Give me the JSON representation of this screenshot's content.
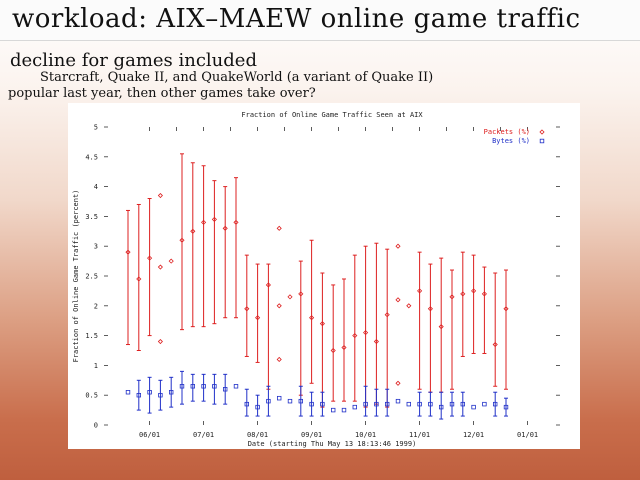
{
  "slide": {
    "title": "workload: AIX–MAEW online game traffic",
    "heading": "decline for games included",
    "line1": "Starcraft, Quake II, and QuakeWorld (a variant of Quake II)",
    "line2": "popular last year, then other games take over?"
  },
  "chart_data": {
    "type": "scatter",
    "title": "Fraction of Online Game Traffic Seen at AIX",
    "xlabel": "Date (starting Thu May 13 18:13:46 1999)",
    "ylabel": "Fraction of Online Game Traffic (percent)",
    "ylim": [
      0,
      5
    ],
    "yticks": [
      0,
      0.5,
      1,
      1.5,
      2,
      2.5,
      3,
      3.5,
      4,
      4.5,
      5
    ],
    "xlim": [
      0,
      40
    ],
    "xticks": [
      {
        "label": "06/01",
        "x": 2
      },
      {
        "label": "07/01",
        "x": 7
      },
      {
        "label": "08/01",
        "x": 12
      },
      {
        "label": "09/01",
        "x": 17
      },
      {
        "label": "10/01",
        "x": 22
      },
      {
        "label": "11/01",
        "x": 27
      },
      {
        "label": "12/01",
        "x": 32
      },
      {
        "label": "01/01",
        "x": 37
      }
    ],
    "grid": false,
    "legend_position": "top-right",
    "series": [
      {
        "name": "Packets (%)",
        "color": "#dd2020",
        "marker": "diamond",
        "points": [
          {
            "x": 0,
            "y": 2.9,
            "lo": 1.35,
            "hi": 3.6
          },
          {
            "x": 1,
            "y": 2.45,
            "lo": 1.25,
            "hi": 3.7
          },
          {
            "x": 2,
            "y": 2.8,
            "lo": 1.5,
            "hi": 3.8
          },
          {
            "x": 3,
            "y": 2.65
          },
          {
            "x": 3,
            "y": 3.85
          },
          {
            "x": 3,
            "y": 1.4
          },
          {
            "x": 4,
            "y": 2.75
          },
          {
            "x": 5,
            "y": 3.1,
            "lo": 1.6,
            "hi": 4.55
          },
          {
            "x": 6,
            "y": 3.25,
            "lo": 1.65,
            "hi": 4.4
          },
          {
            "x": 7,
            "y": 3.4,
            "lo": 1.65,
            "hi": 4.35
          },
          {
            "x": 8,
            "y": 3.45,
            "lo": 1.7,
            "hi": 4.1
          },
          {
            "x": 9,
            "y": 3.3,
            "lo": 1.8,
            "hi": 4.0
          },
          {
            "x": 10,
            "y": 3.4,
            "lo": 1.8,
            "hi": 4.15
          },
          {
            "x": 11,
            "y": 1.95,
            "lo": 1.15,
            "hi": 2.85
          },
          {
            "x": 12,
            "y": 1.8,
            "lo": 1.05,
            "hi": 2.7
          },
          {
            "x": 13,
            "y": 2.35,
            "lo": 0.6,
            "hi": 2.7
          },
          {
            "x": 14,
            "y": 3.3
          },
          {
            "x": 14,
            "y": 2.0
          },
          {
            "x": 14,
            "y": 1.1
          },
          {
            "x": 15,
            "y": 2.15
          },
          {
            "x": 16,
            "y": 2.2,
            "lo": 0.5,
            "hi": 2.75
          },
          {
            "x": 17,
            "y": 1.8,
            "lo": 0.7,
            "hi": 3.1
          },
          {
            "x": 18,
            "y": 1.7,
            "lo": 0.3,
            "hi": 2.55
          },
          {
            "x": 19,
            "y": 1.25,
            "lo": 0.4,
            "hi": 2.35
          },
          {
            "x": 20,
            "y": 1.3,
            "lo": 0.4,
            "hi": 2.45
          },
          {
            "x": 21,
            "y": 1.5,
            "lo": 0.4,
            "hi": 2.85
          },
          {
            "x": 22,
            "y": 1.55,
            "lo": 0.3,
            "hi": 3.0
          },
          {
            "x": 23,
            "y": 1.4,
            "lo": 0.35,
            "hi": 3.05
          },
          {
            "x": 24,
            "y": 1.85,
            "lo": 0.3,
            "hi": 2.95
          },
          {
            "x": 25,
            "y": 3.0
          },
          {
            "x": 25,
            "y": 2.1
          },
          {
            "x": 25,
            "y": 0.7
          },
          {
            "x": 26,
            "y": 2.0
          },
          {
            "x": 27,
            "y": 2.25,
            "lo": 0.6,
            "hi": 2.9
          },
          {
            "x": 28,
            "y": 1.95,
            "lo": 0.55,
            "hi": 2.7
          },
          {
            "x": 29,
            "y": 1.65,
            "lo": 0.55,
            "hi": 2.8
          },
          {
            "x": 30,
            "y": 2.15,
            "lo": 0.6,
            "hi": 2.6
          },
          {
            "x": 31,
            "y": 2.2,
            "lo": 1.15,
            "hi": 2.9
          },
          {
            "x": 32,
            "y": 2.25,
            "lo": 1.2,
            "hi": 2.85
          },
          {
            "x": 33,
            "y": 2.2,
            "lo": 1.2,
            "hi": 2.65
          },
          {
            "x": 34,
            "y": 1.35,
            "lo": 0.65,
            "hi": 2.55
          },
          {
            "x": 35,
            "y": 1.95,
            "lo": 0.6,
            "hi": 2.6
          }
        ]
      },
      {
        "name": "Bytes (%)",
        "color": "#2030c8",
        "marker": "square",
        "points": [
          {
            "x": 0,
            "y": 0.55
          },
          {
            "x": 1,
            "y": 0.5,
            "lo": 0.25,
            "hi": 0.75
          },
          {
            "x": 2,
            "y": 0.55,
            "lo": 0.2,
            "hi": 0.8
          },
          {
            "x": 3,
            "y": 0.5,
            "lo": 0.25,
            "hi": 0.75
          },
          {
            "x": 4,
            "y": 0.55,
            "lo": 0.3,
            "hi": 0.8
          },
          {
            "x": 5,
            "y": 0.65,
            "lo": 0.35,
            "hi": 0.9
          },
          {
            "x": 6,
            "y": 0.65,
            "lo": 0.4,
            "hi": 0.85
          },
          {
            "x": 7,
            "y": 0.65,
            "lo": 0.4,
            "hi": 0.85
          },
          {
            "x": 8,
            "y": 0.65,
            "lo": 0.35,
            "hi": 0.85
          },
          {
            "x": 9,
            "y": 0.6,
            "lo": 0.35,
            "hi": 0.85
          },
          {
            "x": 10,
            "y": 0.65
          },
          {
            "x": 11,
            "y": 0.35,
            "lo": 0.15,
            "hi": 0.6
          },
          {
            "x": 12,
            "y": 0.3,
            "lo": 0.15,
            "hi": 0.5
          },
          {
            "x": 13,
            "y": 0.4,
            "lo": 0.15,
            "hi": 0.65
          },
          {
            "x": 14,
            "y": 0.45
          },
          {
            "x": 15,
            "y": 0.4
          },
          {
            "x": 16,
            "y": 0.4,
            "lo": 0.15,
            "hi": 0.65
          },
          {
            "x": 17,
            "y": 0.35,
            "lo": 0.15,
            "hi": 0.55
          },
          {
            "x": 18,
            "y": 0.35,
            "lo": 0.15,
            "hi": 0.55
          },
          {
            "x": 19,
            "y": 0.25
          },
          {
            "x": 20,
            "y": 0.25
          },
          {
            "x": 21,
            "y": 0.3
          },
          {
            "x": 22,
            "y": 0.35,
            "lo": 0.15,
            "hi": 0.65
          },
          {
            "x": 23,
            "y": 0.35,
            "lo": 0.15,
            "hi": 0.6
          },
          {
            "x": 24,
            "y": 0.35,
            "lo": 0.15,
            "hi": 0.6
          },
          {
            "x": 25,
            "y": 0.4
          },
          {
            "x": 26,
            "y": 0.35
          },
          {
            "x": 27,
            "y": 0.35,
            "lo": 0.15,
            "hi": 0.55
          },
          {
            "x": 28,
            "y": 0.35,
            "lo": 0.15,
            "hi": 0.55
          },
          {
            "x": 29,
            "y": 0.3,
            "lo": 0.1,
            "hi": 0.55
          },
          {
            "x": 30,
            "y": 0.35,
            "lo": 0.15,
            "hi": 0.55
          },
          {
            "x": 31,
            "y": 0.35,
            "lo": 0.15,
            "hi": 0.55
          },
          {
            "x": 32,
            "y": 0.3
          },
          {
            "x": 33,
            "y": 0.35
          },
          {
            "x": 34,
            "y": 0.35,
            "lo": 0.15,
            "hi": 0.55
          },
          {
            "x": 35,
            "y": 0.3,
            "lo": 0.15,
            "hi": 0.45
          }
        ]
      }
    ]
  }
}
